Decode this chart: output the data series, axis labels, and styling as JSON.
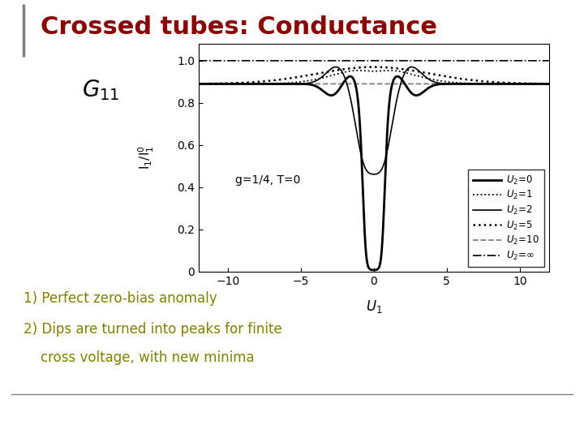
{
  "title": "Crossed tubes: Conductance",
  "title_color": "#8B0000",
  "title_fontsize": 22,
  "background_color": "#ffffff",
  "plot_bg_color": "white",
  "text_color_bottom": "#808000",
  "annotation": "g=1/4, T=0",
  "xlim": [
    -12,
    12
  ],
  "ylim": [
    0,
    1.08
  ],
  "yticks": [
    0,
    0.2,
    0.4,
    0.6,
    0.8,
    1.0
  ],
  "xticks": [
    -10,
    -5,
    0,
    5,
    10
  ],
  "g": 0.25
}
